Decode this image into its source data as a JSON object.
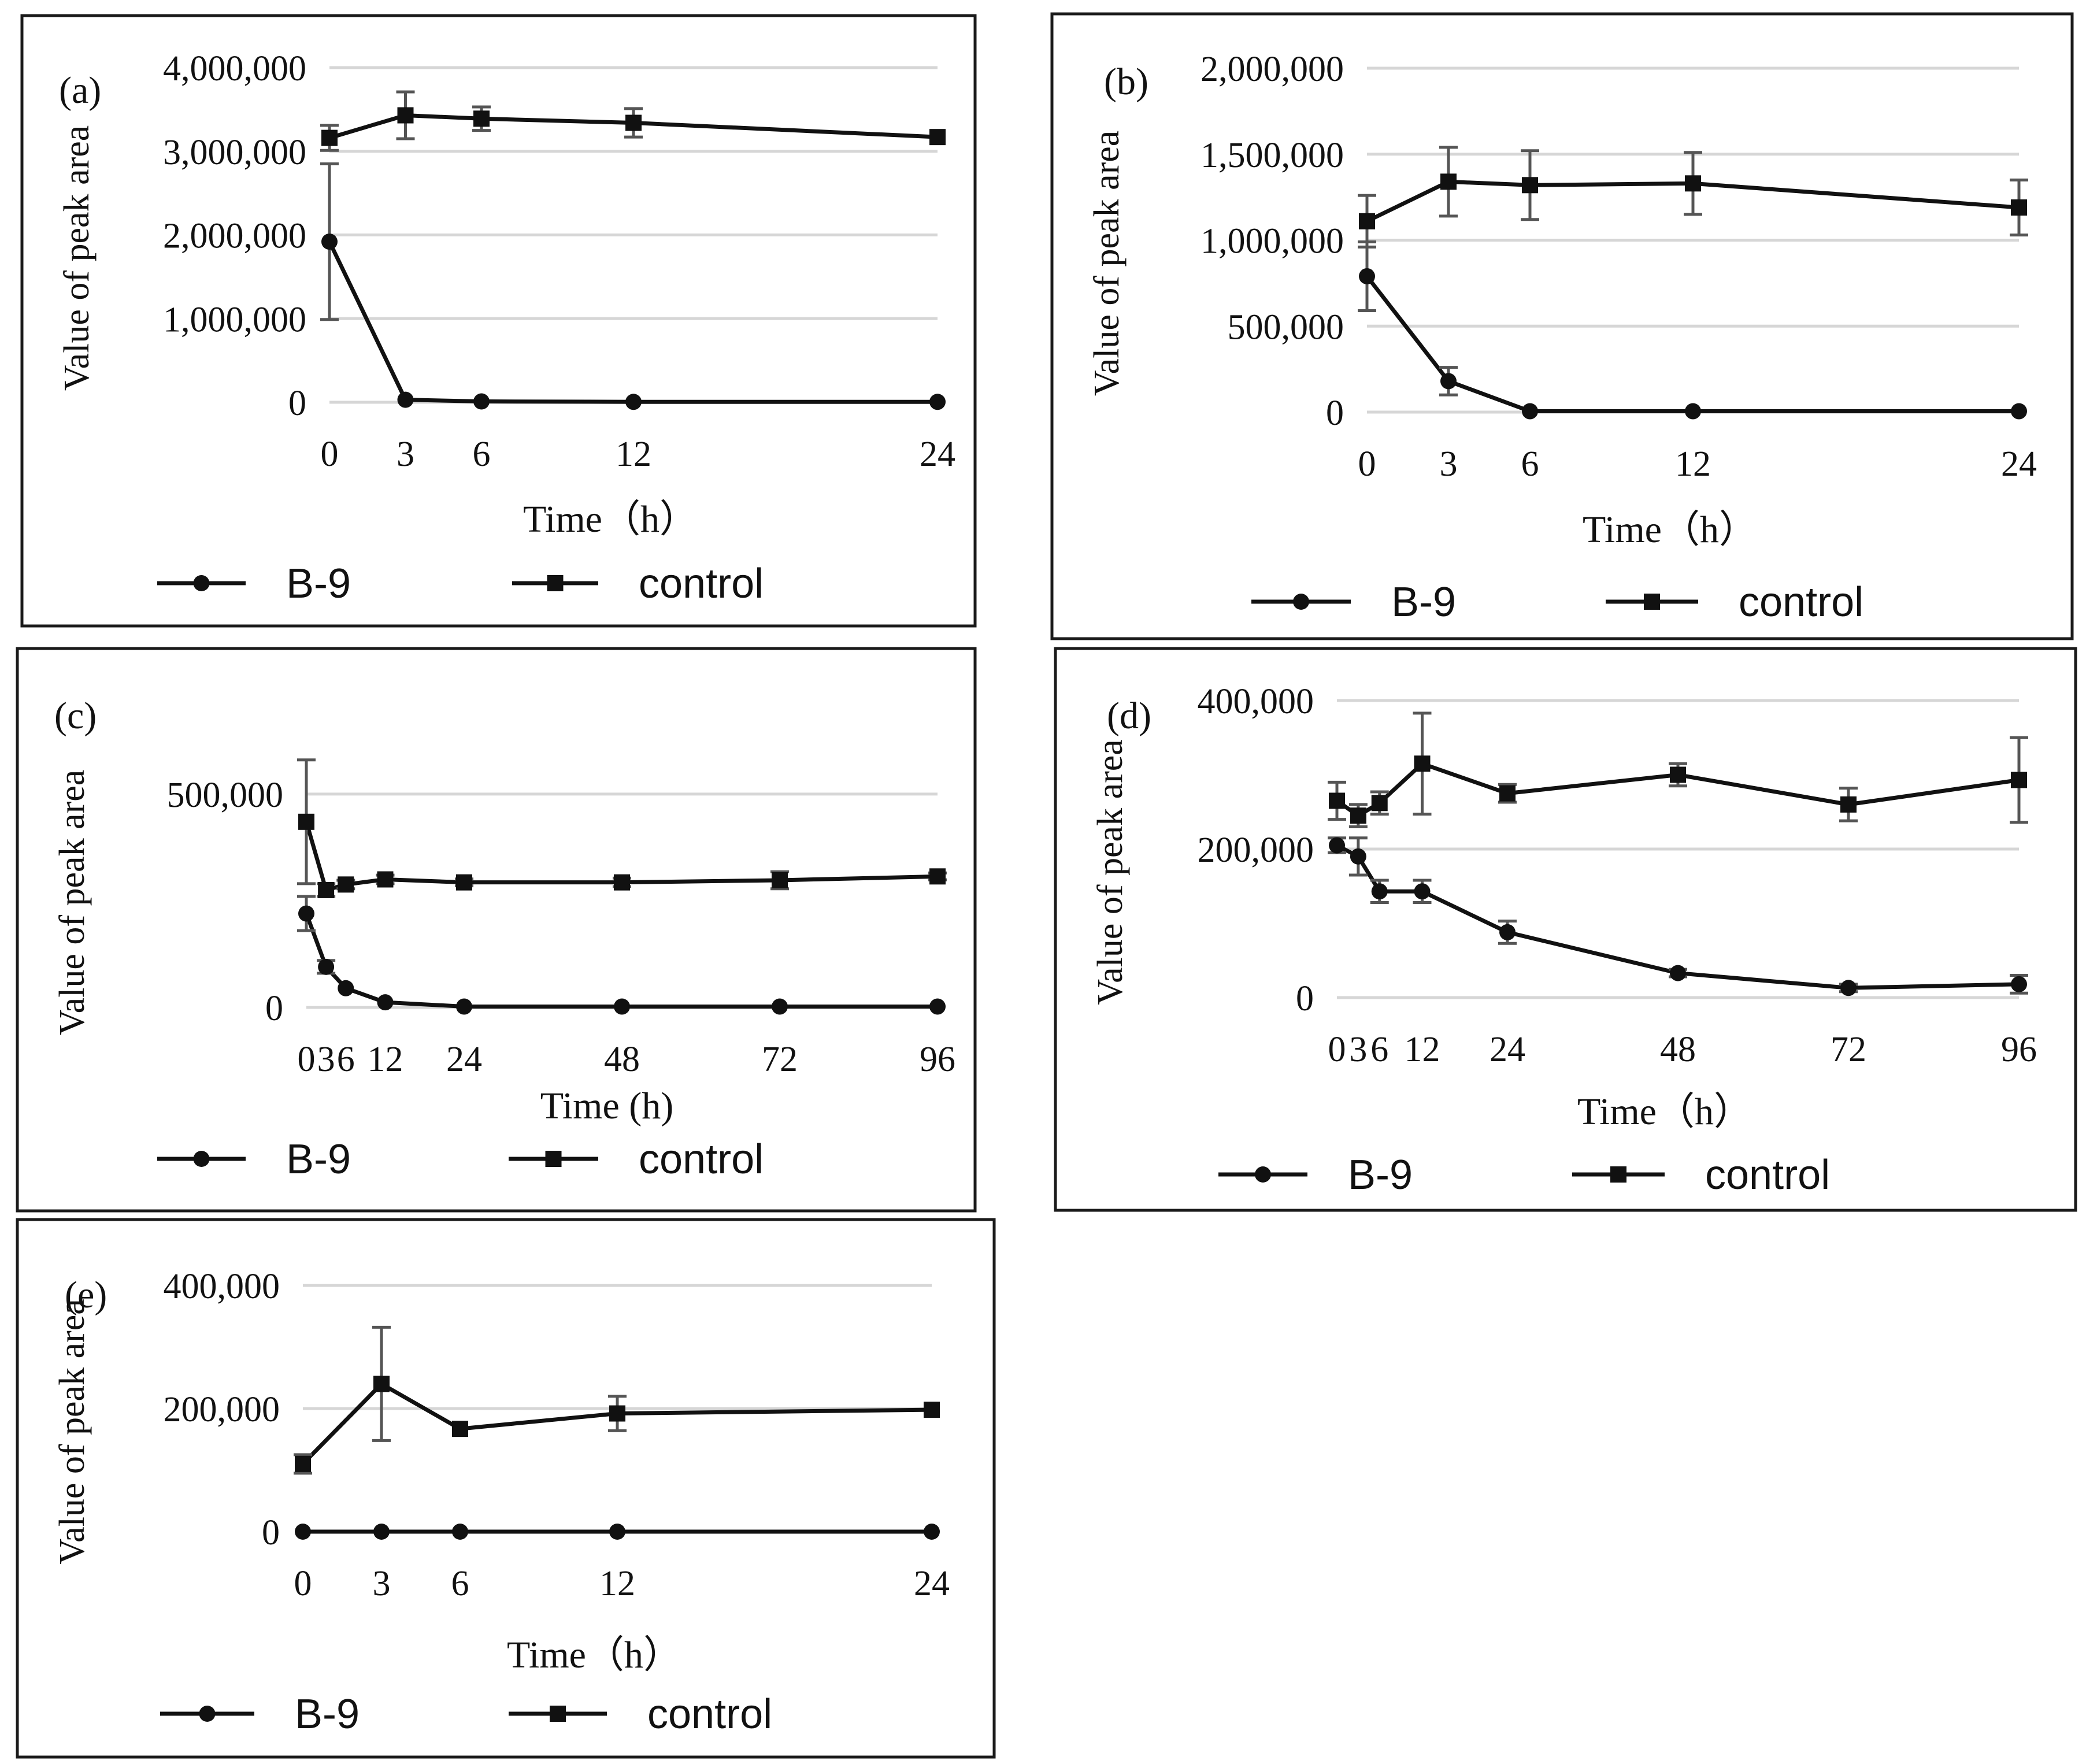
{
  "chart_data": [
    {
      "type": "line",
      "panel_label": "(a)",
      "title": "",
      "xlabel": "Time（h）",
      "ylabel": "Value of peak area",
      "x": [
        0,
        3,
        6,
        12,
        24
      ],
      "xticks": [
        "0",
        "3",
        "6",
        "12",
        "24"
      ],
      "xlim": [
        0,
        24
      ],
      "ylim": [
        0,
        4000000
      ],
      "yticks": [
        0,
        1000000,
        2000000,
        3000000,
        4000000
      ],
      "ytick_labels": [
        "0",
        "1,000,000",
        "2,000,000",
        "3,000,000",
        "4,000,000"
      ],
      "grid": true,
      "legend_position": "bottom",
      "series": [
        {
          "name": "B-9",
          "marker": "circle",
          "values": [
            1920000,
            30000,
            10000,
            5000,
            5000
          ],
          "errors": [
            930000,
            0,
            0,
            0,
            0
          ]
        },
        {
          "name": "control",
          "marker": "square",
          "values": [
            3160000,
            3430000,
            3390000,
            3340000,
            3170000
          ],
          "errors": [
            150000,
            280000,
            140000,
            170000,
            0
          ]
        }
      ]
    },
    {
      "type": "line",
      "panel_label": "(b)",
      "title": "",
      "xlabel": "Time（h）",
      "ylabel": "Value of peak area",
      "x": [
        0,
        3,
        6,
        12,
        24
      ],
      "xticks": [
        "0",
        "3",
        "6",
        "12",
        "24"
      ],
      "xlim": [
        0,
        24
      ],
      "ylim": [
        0,
        2000000
      ],
      "yticks": [
        0,
        500000,
        1000000,
        1500000,
        2000000
      ],
      "ytick_labels": [
        "0",
        "500,000",
        "1,000,000",
        "1,500,000",
        "2,000,000"
      ],
      "grid": true,
      "legend_position": "bottom",
      "series": [
        {
          "name": "B-9",
          "marker": "circle",
          "values": [
            790000,
            180000,
            5000,
            5000,
            5000
          ],
          "errors": [
            200000,
            80000,
            0,
            0,
            0
          ]
        },
        {
          "name": "control",
          "marker": "square",
          "values": [
            1110000,
            1340000,
            1320000,
            1330000,
            1190000
          ],
          "errors": [
            150000,
            200000,
            200000,
            180000,
            160000
          ]
        }
      ]
    },
    {
      "type": "line",
      "panel_label": "(c)",
      "title": "",
      "xlabel": "Time (h)",
      "ylabel": "Value of peak area",
      "x": [
        0,
        3,
        6,
        12,
        24,
        48,
        72,
        96
      ],
      "xticks": [
        "0",
        "3",
        "6",
        "12",
        "24",
        "48",
        "72",
        "96"
      ],
      "xlim": [
        0,
        96
      ],
      "ylim": [
        0,
        600000
      ],
      "yticks": [
        0,
        500000
      ],
      "ytick_labels": [
        "0",
        "500,000"
      ],
      "grid": true,
      "legend_position": "bottom",
      "series": [
        {
          "name": "B-9",
          "marker": "circle",
          "values": [
            220000,
            95000,
            45000,
            12000,
            2000,
            2000,
            2000,
            2000
          ],
          "errors": [
            40000,
            15000,
            0,
            0,
            0,
            0,
            0,
            0
          ]
        },
        {
          "name": "control",
          "marker": "square",
          "values": [
            435000,
            275000,
            288000,
            300000,
            293000,
            293000,
            298000,
            307000
          ],
          "errors": [
            145000,
            15000,
            10000,
            10000,
            8000,
            10000,
            20000,
            8000
          ]
        }
      ]
    },
    {
      "type": "line",
      "panel_label": "(d)",
      "title": "",
      "xlabel": "Time（h）",
      "ylabel": "Value of peak area",
      "x": [
        0,
        3,
        6,
        12,
        24,
        48,
        72,
        96
      ],
      "xticks": [
        "0",
        "3",
        "6",
        "12",
        "24",
        "48",
        "72",
        "96"
      ],
      "xlim": [
        0,
        96
      ],
      "ylim": [
        0,
        400000
      ],
      "yticks": [
        0,
        200000,
        400000
      ],
      "ytick_labels": [
        "0",
        "200,000",
        "400,000"
      ],
      "grid": true,
      "legend_position": "bottom",
      "series": [
        {
          "name": "B-9",
          "marker": "circle",
          "values": [
            205000,
            190000,
            143000,
            143000,
            88000,
            33000,
            13000,
            18000
          ],
          "errors": [
            10000,
            25000,
            15000,
            15000,
            15000,
            5000,
            5000,
            12000
          ]
        },
        {
          "name": "control",
          "marker": "square",
          "values": [
            265000,
            245000,
            262000,
            315000,
            275000,
            300000,
            260000,
            293000
          ],
          "errors": [
            25000,
            15000,
            15000,
            68000,
            12000,
            15000,
            22000,
            57000
          ]
        }
      ]
    },
    {
      "type": "line",
      "panel_label": "(e)",
      "title": "",
      "xlabel": "Time（h）",
      "ylabel": "Value of peak area",
      "x": [
        0,
        3,
        6,
        12,
        24
      ],
      "xticks": [
        "0",
        "3",
        "6",
        "12",
        "24"
      ],
      "xlim": [
        0,
        24
      ],
      "ylim": [
        0,
        400000
      ],
      "yticks": [
        0,
        200000,
        400000
      ],
      "ytick_labels": [
        "0",
        "200,000",
        "400,000"
      ],
      "grid": true,
      "legend_position": "bottom",
      "series": [
        {
          "name": "B-9",
          "marker": "circle",
          "values": [
            0,
            0,
            0,
            0,
            0
          ],
          "errors": [
            0,
            0,
            0,
            0,
            0
          ]
        },
        {
          "name": "control",
          "marker": "square",
          "values": [
            110000,
            240000,
            167000,
            192000,
            198000
          ],
          "errors": [
            15000,
            92000,
            0,
            28000,
            0
          ]
        }
      ]
    }
  ]
}
